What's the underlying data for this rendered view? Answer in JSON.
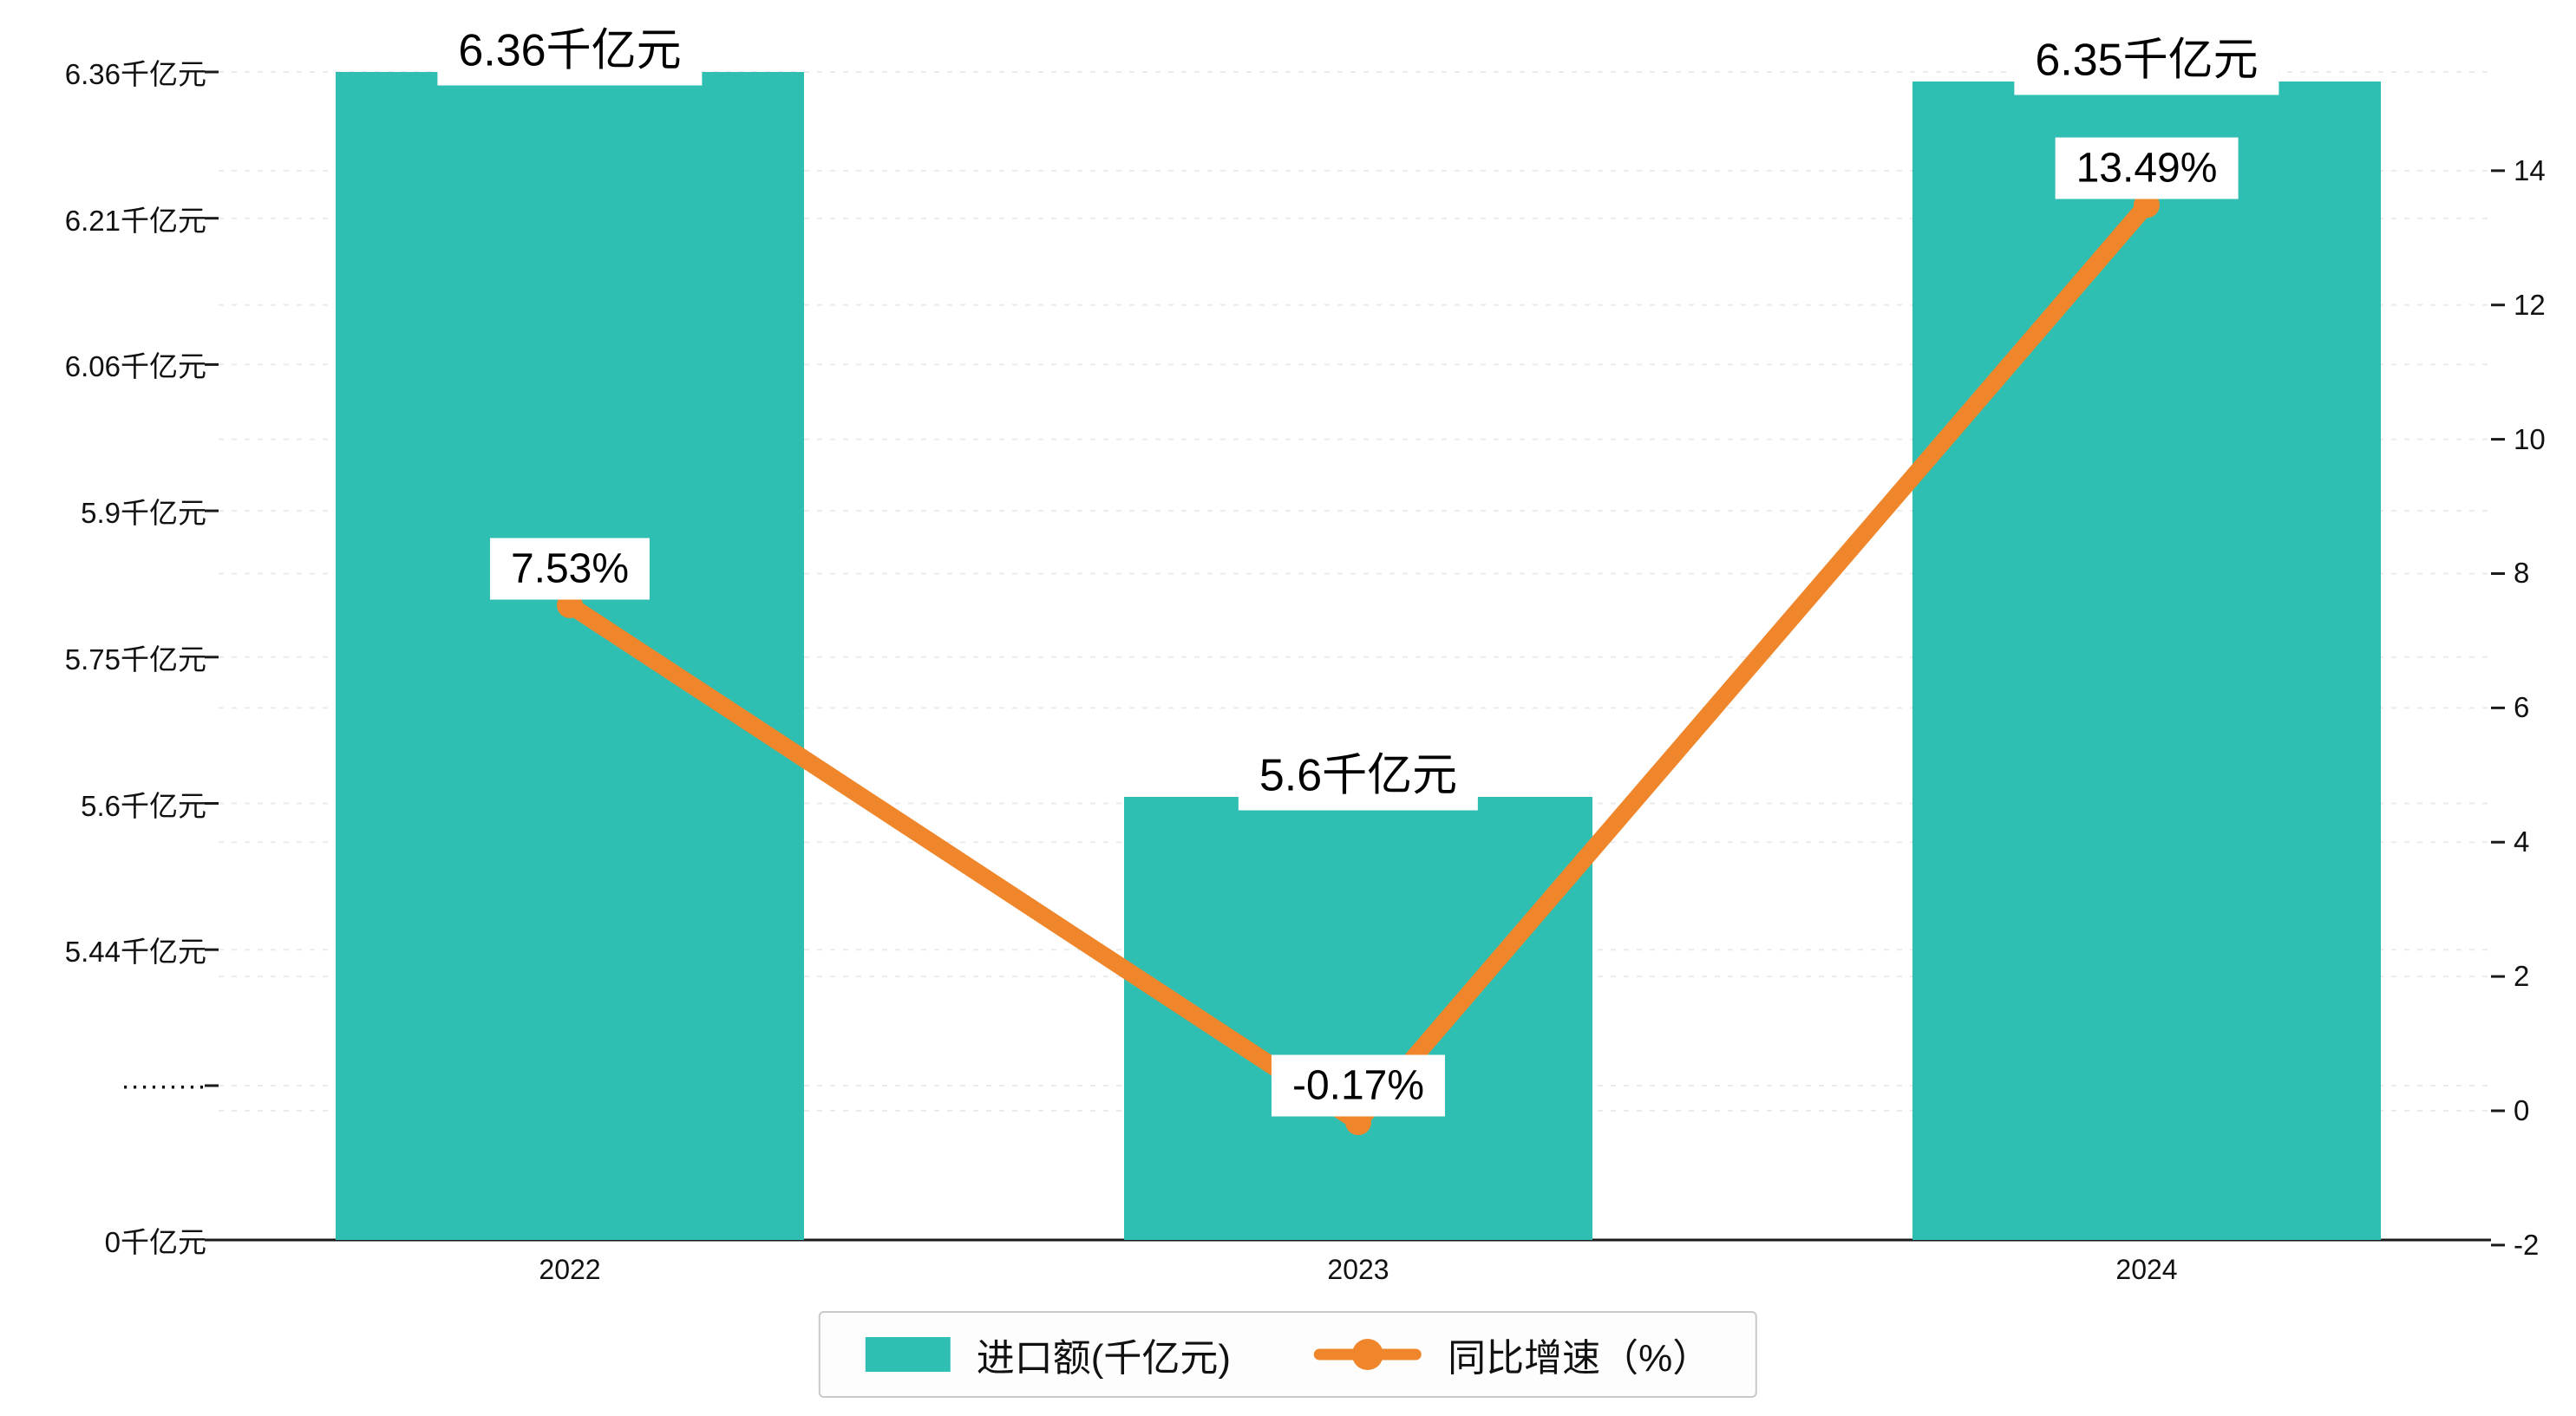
{
  "chart_data": {
    "type": "bar",
    "subtype": "bar+line combo",
    "categories": [
      "2022",
      "2023",
      "2024"
    ],
    "series": [
      {
        "name": "进口额(千亿元)",
        "type": "bar",
        "values": [
          6.36,
          5.6,
          6.35
        ],
        "value_labels": [
          "6.36千亿元",
          "5.6千亿元",
          "6.35千亿元"
        ],
        "color": "#2ebfb2",
        "axis": "left"
      },
      {
        "name": "同比增速（%）",
        "type": "line",
        "values": [
          7.53,
          -0.17,
          13.49
        ],
        "value_labels": [
          "7.53%",
          "-0.17%",
          "13.49%"
        ],
        "color": "#f0862b",
        "axis": "right"
      }
    ],
    "left_axis": {
      "tick_labels": [
        "6.36千亿元",
        "6.21千亿元",
        "6.06千亿元",
        "5.9千亿元",
        "5.75千亿元",
        "5.6千亿元",
        "5.44千亿元",
        "·········",
        "0千亿元"
      ],
      "tick_values": [
        6.36,
        6.21,
        6.06,
        5.9,
        5.75,
        5.6,
        5.44,
        null,
        0
      ],
      "has_break": true
    },
    "right_axis": {
      "tick_labels": [
        "14",
        "12",
        "10",
        "8",
        "6",
        "4",
        "2",
        "0",
        "-2"
      ],
      "min": -2,
      "max": 14,
      "step": 2
    },
    "grid": true,
    "legend_position": "bottom",
    "colors": {
      "bar": "#2ebfb2",
      "line": "#f0862b",
      "gridline": "#ebebeb",
      "axis": "#1a1a1a"
    }
  }
}
